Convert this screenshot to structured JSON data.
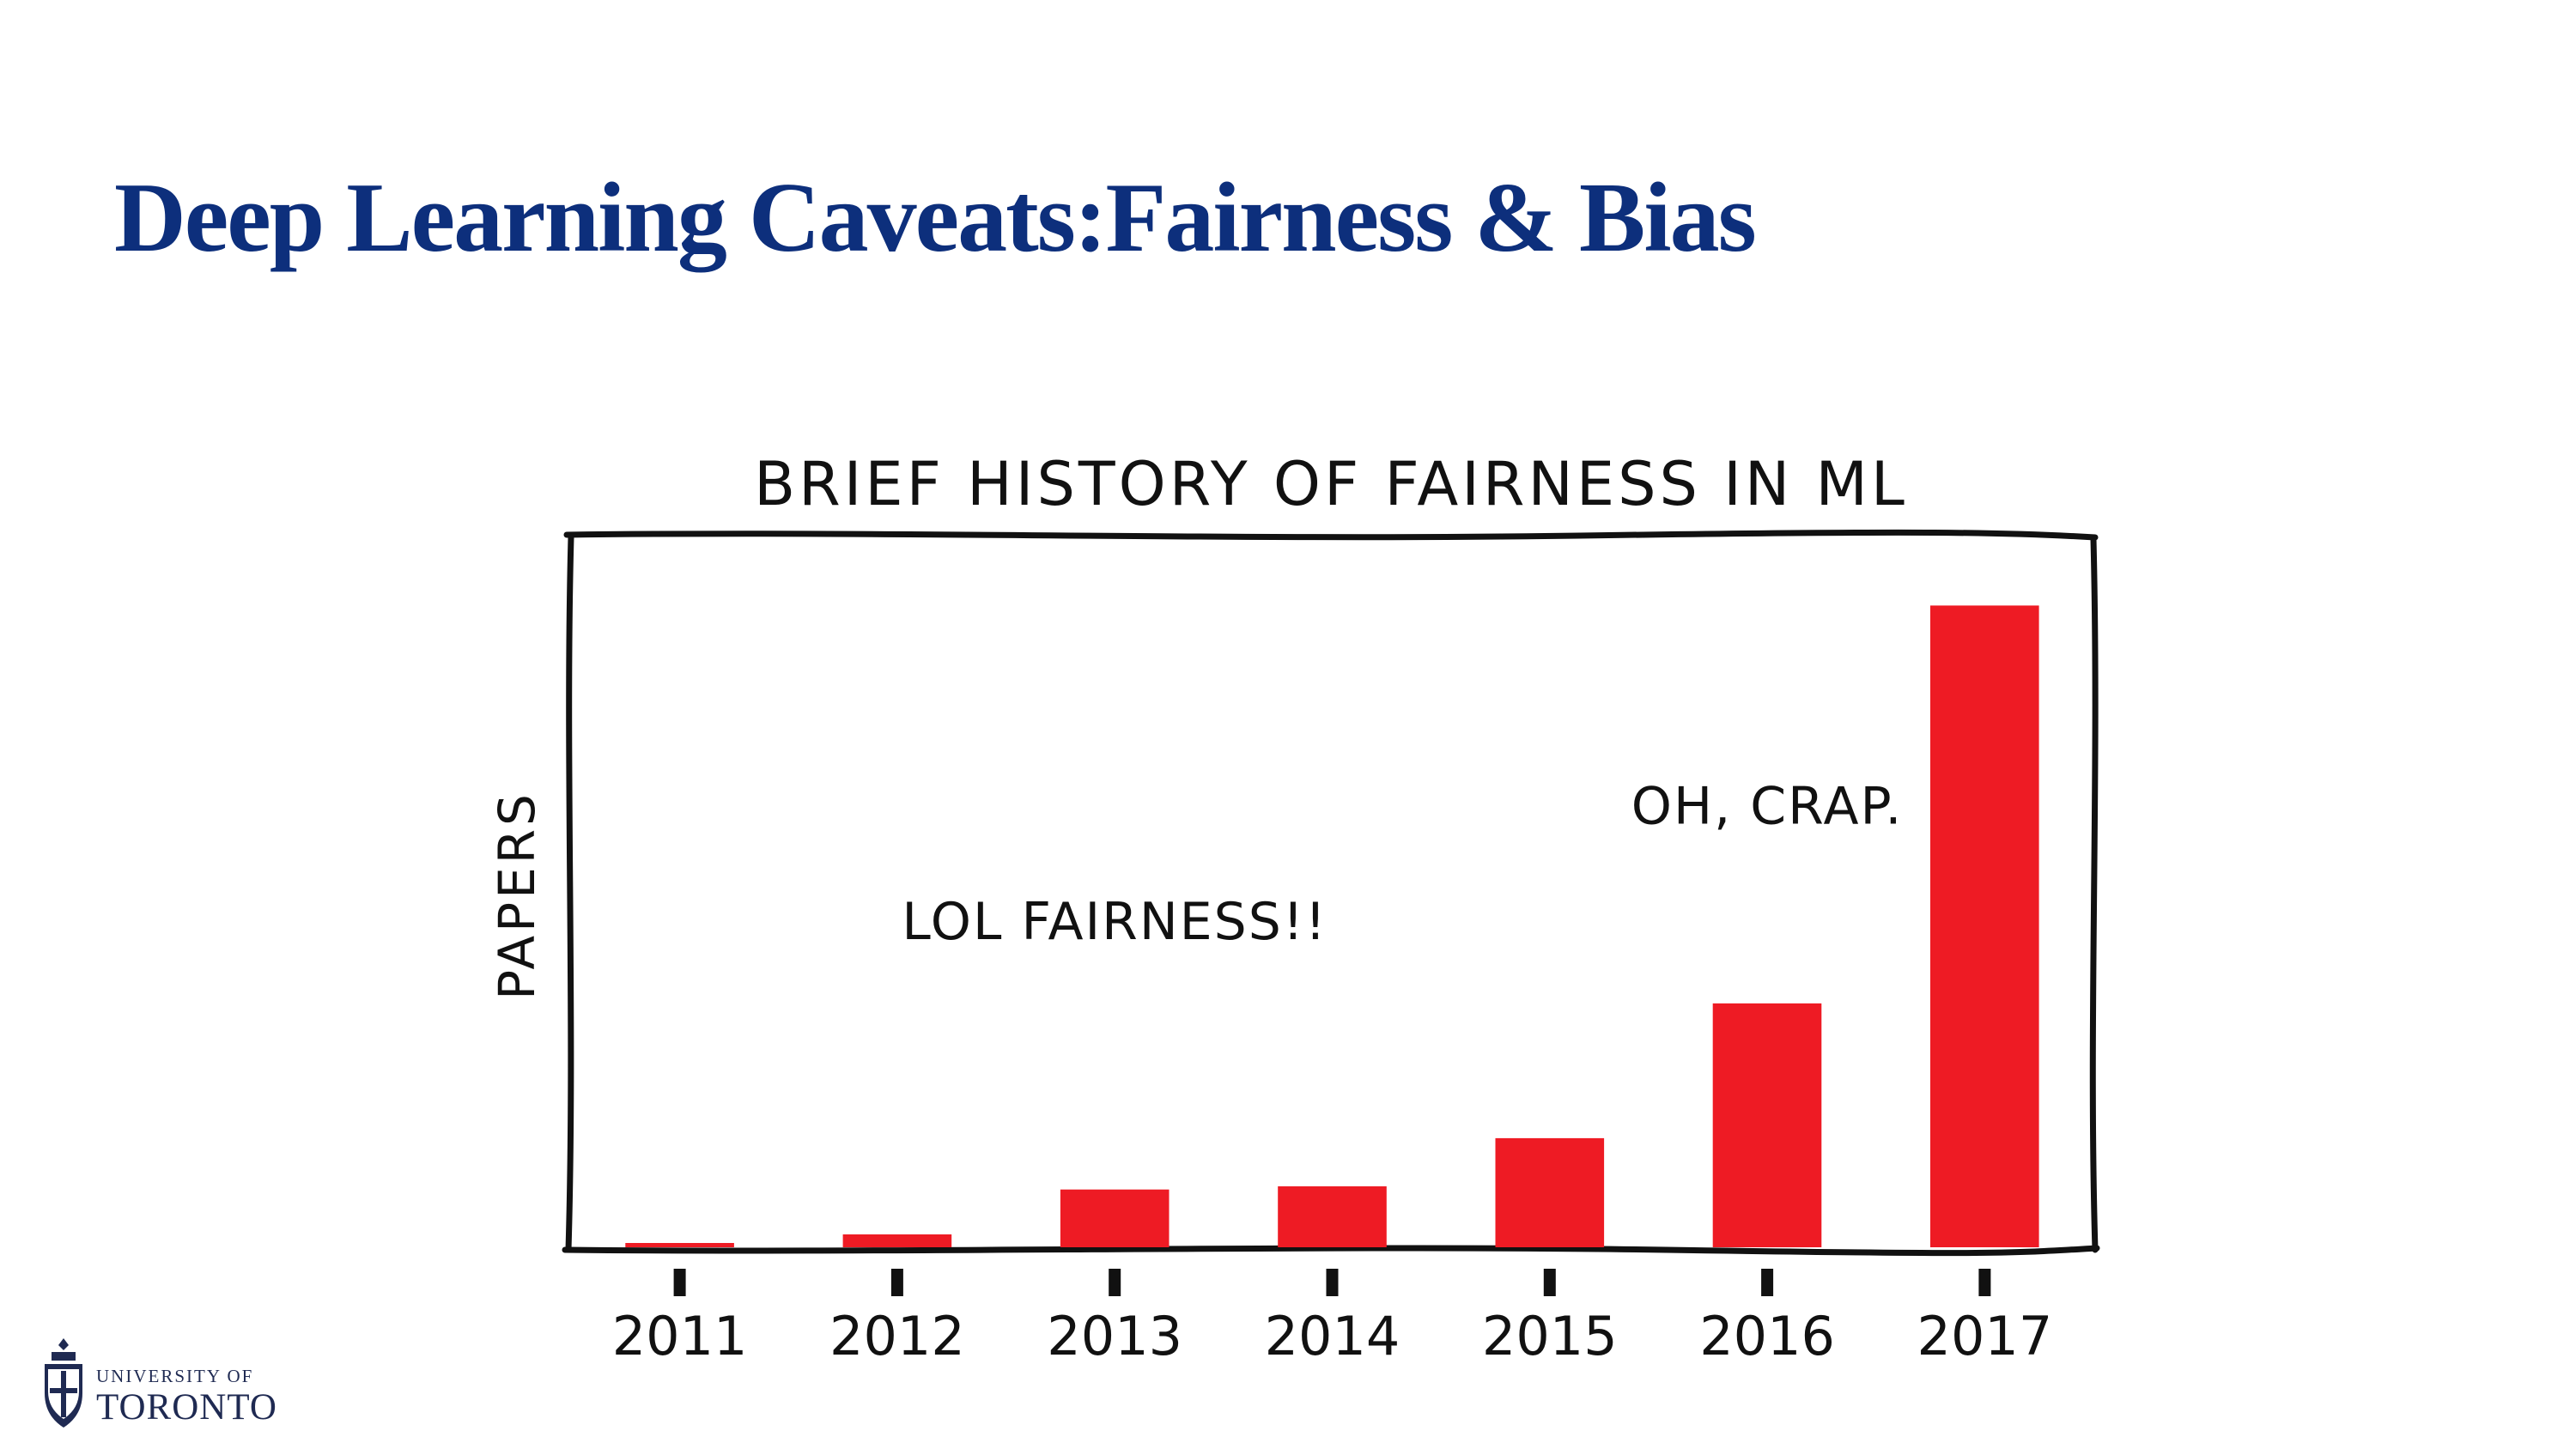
{
  "slide": {
    "title": "Deep Learning Caveats:Fairness & Bias"
  },
  "logo": {
    "line1": "UNIVERSITY OF",
    "line2": "TORONTO"
  },
  "chart_data": {
    "type": "bar",
    "title": "BRIEF HISTORY OF FAIRNESS IN ML",
    "ylabel": "PAPERS",
    "xlabel": "",
    "categories": [
      "2011",
      "2012",
      "2013",
      "2014",
      "2015",
      "2016",
      "2017"
    ],
    "values": [
      0.5,
      2,
      9,
      9.5,
      17,
      38,
      100
    ],
    "ylim": [
      0,
      105
    ],
    "bar_color": "#ee1b24",
    "annotations": [
      {
        "text": "LOL FAIRNESS!!",
        "x": "2013",
        "y": 48
      },
      {
        "text": "OH, CRAP.",
        "x": "2016",
        "y": 66
      }
    ],
    "grid": false,
    "legend": "none"
  }
}
